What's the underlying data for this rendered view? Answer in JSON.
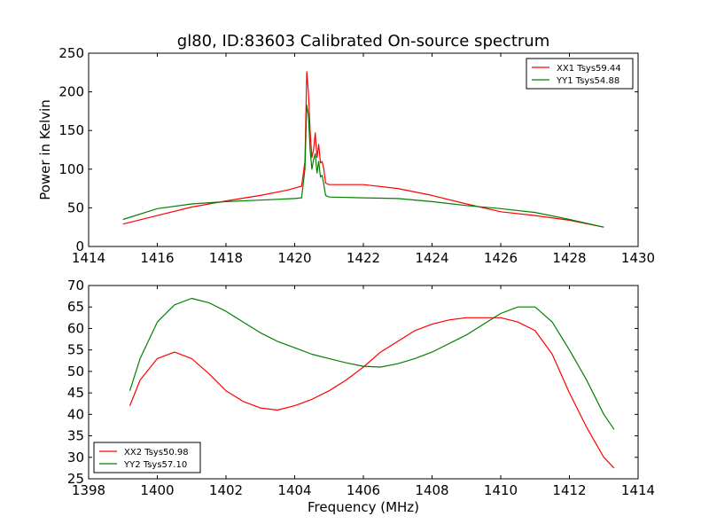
{
  "title": "gl80, ID:83603 Calibrated On-source spectrum",
  "chart_data": [
    {
      "type": "line",
      "title": "gl80, ID:83603 Calibrated On-source spectrum",
      "xlabel": "",
      "ylabel": "Power in Kelvin",
      "xlim": [
        1414,
        1430
      ],
      "ylim": [
        0,
        250
      ],
      "xticks": [
        "1414",
        "1416",
        "1418",
        "1420",
        "1422",
        "1424",
        "1426",
        "1428",
        "1430"
      ],
      "yticks": [
        "0",
        "50",
        "100",
        "150",
        "200",
        "250"
      ],
      "grid": false,
      "legend_position": "top-right",
      "series": [
        {
          "name": "XX1 Tsys59.44",
          "color": "#ff0000",
          "x": [
            1415.0,
            1416.0,
            1417.0,
            1418.0,
            1419.0,
            1419.8,
            1420.2,
            1420.3,
            1420.35,
            1420.4,
            1420.45,
            1420.5,
            1420.55,
            1420.6,
            1420.65,
            1420.7,
            1420.75,
            1420.8,
            1420.85,
            1420.9,
            1421.0,
            1421.5,
            1422.0,
            1423.0,
            1424.0,
            1425.0,
            1426.0,
            1427.0,
            1428.0,
            1429.0
          ],
          "y": [
            29,
            40,
            51,
            59,
            66,
            73,
            78,
            110,
            226,
            200,
            150,
            115,
            125,
            147,
            115,
            132,
            108,
            110,
            100,
            82,
            80,
            80,
            80,
            75,
            66,
            55,
            45,
            40,
            34,
            25
          ]
        },
        {
          "name": "YY1 Tsys54.88",
          "color": "#008000",
          "x": [
            1415.0,
            1416.0,
            1417.0,
            1418.0,
            1419.0,
            1420.0,
            1420.2,
            1420.3,
            1420.35,
            1420.4,
            1420.45,
            1420.5,
            1420.55,
            1420.6,
            1420.65,
            1420.7,
            1420.75,
            1420.8,
            1420.85,
            1420.9,
            1421.0,
            1422.0,
            1423.0,
            1424.0,
            1425.0,
            1426.0,
            1427.0,
            1428.0,
            1429.0
          ],
          "y": [
            35,
            49,
            55,
            58,
            60,
            62,
            63,
            100,
            183,
            170,
            125,
            100,
            112,
            120,
            95,
            110,
            90,
            92,
            80,
            66,
            64,
            63,
            62,
            58,
            53,
            49,
            44,
            35,
            25
          ]
        }
      ]
    },
    {
      "type": "line",
      "title": "",
      "xlabel": "Frequency (MHz)",
      "ylabel": "",
      "xlim": [
        1398,
        1414
      ],
      "ylim": [
        25,
        70
      ],
      "xticks": [
        "1398",
        "1400",
        "1402",
        "1404",
        "1406",
        "1408",
        "1410",
        "1412",
        "1414"
      ],
      "yticks": [
        "25",
        "30",
        "35",
        "40",
        "45",
        "50",
        "55",
        "60",
        "65",
        "70"
      ],
      "grid": false,
      "legend_position": "bottom-left",
      "series": [
        {
          "name": "XX2 Tsys50.98",
          "color": "#ff0000",
          "x": [
            1399.2,
            1399.5,
            1400.0,
            1400.5,
            1401.0,
            1401.5,
            1402.0,
            1402.5,
            1403.0,
            1403.5,
            1404.0,
            1404.5,
            1405.0,
            1405.5,
            1406.0,
            1406.5,
            1407.0,
            1407.5,
            1408.0,
            1408.5,
            1409.0,
            1409.5,
            1410.0,
            1410.5,
            1411.0,
            1411.5,
            1412.0,
            1412.5,
            1413.0,
            1413.3
          ],
          "y": [
            42,
            48,
            53,
            54.5,
            53,
            49.5,
            45.5,
            43,
            41.5,
            41,
            42,
            43.5,
            45.5,
            48,
            51,
            54.5,
            57,
            59.5,
            61,
            62,
            62.5,
            62.5,
            62.5,
            61.5,
            59.5,
            54,
            45,
            37,
            30,
            27.5
          ]
        },
        {
          "name": "YY2 Tsys57.10",
          "color": "#008000",
          "x": [
            1399.2,
            1399.5,
            1400.0,
            1400.5,
            1401.0,
            1401.5,
            1402.0,
            1402.5,
            1403.0,
            1403.5,
            1404.0,
            1404.5,
            1405.0,
            1405.5,
            1406.0,
            1406.5,
            1407.0,
            1407.5,
            1408.0,
            1408.5,
            1409.0,
            1409.5,
            1410.0,
            1410.5,
            1411.0,
            1411.5,
            1412.0,
            1412.5,
            1413.0,
            1413.3
          ],
          "y": [
            45.5,
            53,
            61.5,
            65.5,
            67,
            66,
            64,
            61.5,
            59,
            57,
            55.5,
            54,
            53,
            52,
            51.2,
            51,
            51.8,
            53,
            54.5,
            56.5,
            58.5,
            61,
            63.5,
            65,
            65,
            61.5,
            55,
            48,
            40,
            36.5
          ]
        }
      ]
    }
  ]
}
